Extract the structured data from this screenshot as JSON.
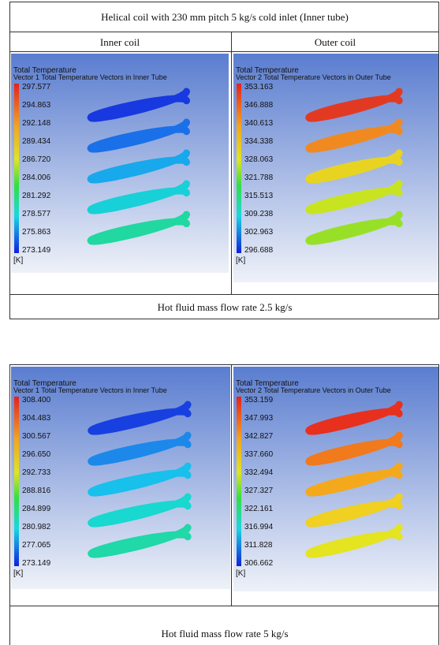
{
  "table1": {
    "title": "Helical coil with 230 mm pitch 5 kg/s cold inlet (Inner tube)",
    "headers": [
      "Inner coil",
      "Outer coil"
    ],
    "panels": [
      {
        "legend_title": "Total Temperature",
        "legend_subtitle": "Vector 1 Total Temperature Vectors in Inner Tube",
        "values": [
          "297.577",
          "294.863",
          "292.148",
          "289.434",
          "286.720",
          "284.006",
          "281.292",
          "278.577",
          "275.863",
          "273.149"
        ],
        "unit": "[K]"
      },
      {
        "legend_title": "Total Temperature",
        "legend_subtitle": "Vector 2 Total Temperature Vectors in Outer Tube",
        "values": [
          "353.163",
          "346.888",
          "340.613",
          "334.338",
          "328.063",
          "321.788",
          "315.513",
          "309.238",
          "302.963",
          "296.688"
        ],
        "unit": "[K]"
      }
    ],
    "footer": "Hot fluid  mass flow rate 2.5 kg/s"
  },
  "table2": {
    "panels": [
      {
        "legend_title": "Total Temperature",
        "legend_subtitle": "Vector 1 Total Temperature Vectors in Inner Tube",
        "values": [
          "308.400",
          "304.483",
          "300.567",
          "296.650",
          "292.733",
          "288.816",
          "284.899",
          "280.982",
          "277.065",
          "273.149"
        ],
        "unit": "[K]"
      },
      {
        "legend_title": "Total Temperature",
        "legend_subtitle": "Vector 2 Total Temperature Vectors in Outer Tube",
        "values": [
          "353.159",
          "347.993",
          "342.827",
          "337.660",
          "332.494",
          "327.327",
          "322.161",
          "316.994",
          "311.828",
          "306.662"
        ],
        "unit": "[K]"
      }
    ],
    "footer": "Hot fluid  mass flow rate 5 kg/s"
  }
}
